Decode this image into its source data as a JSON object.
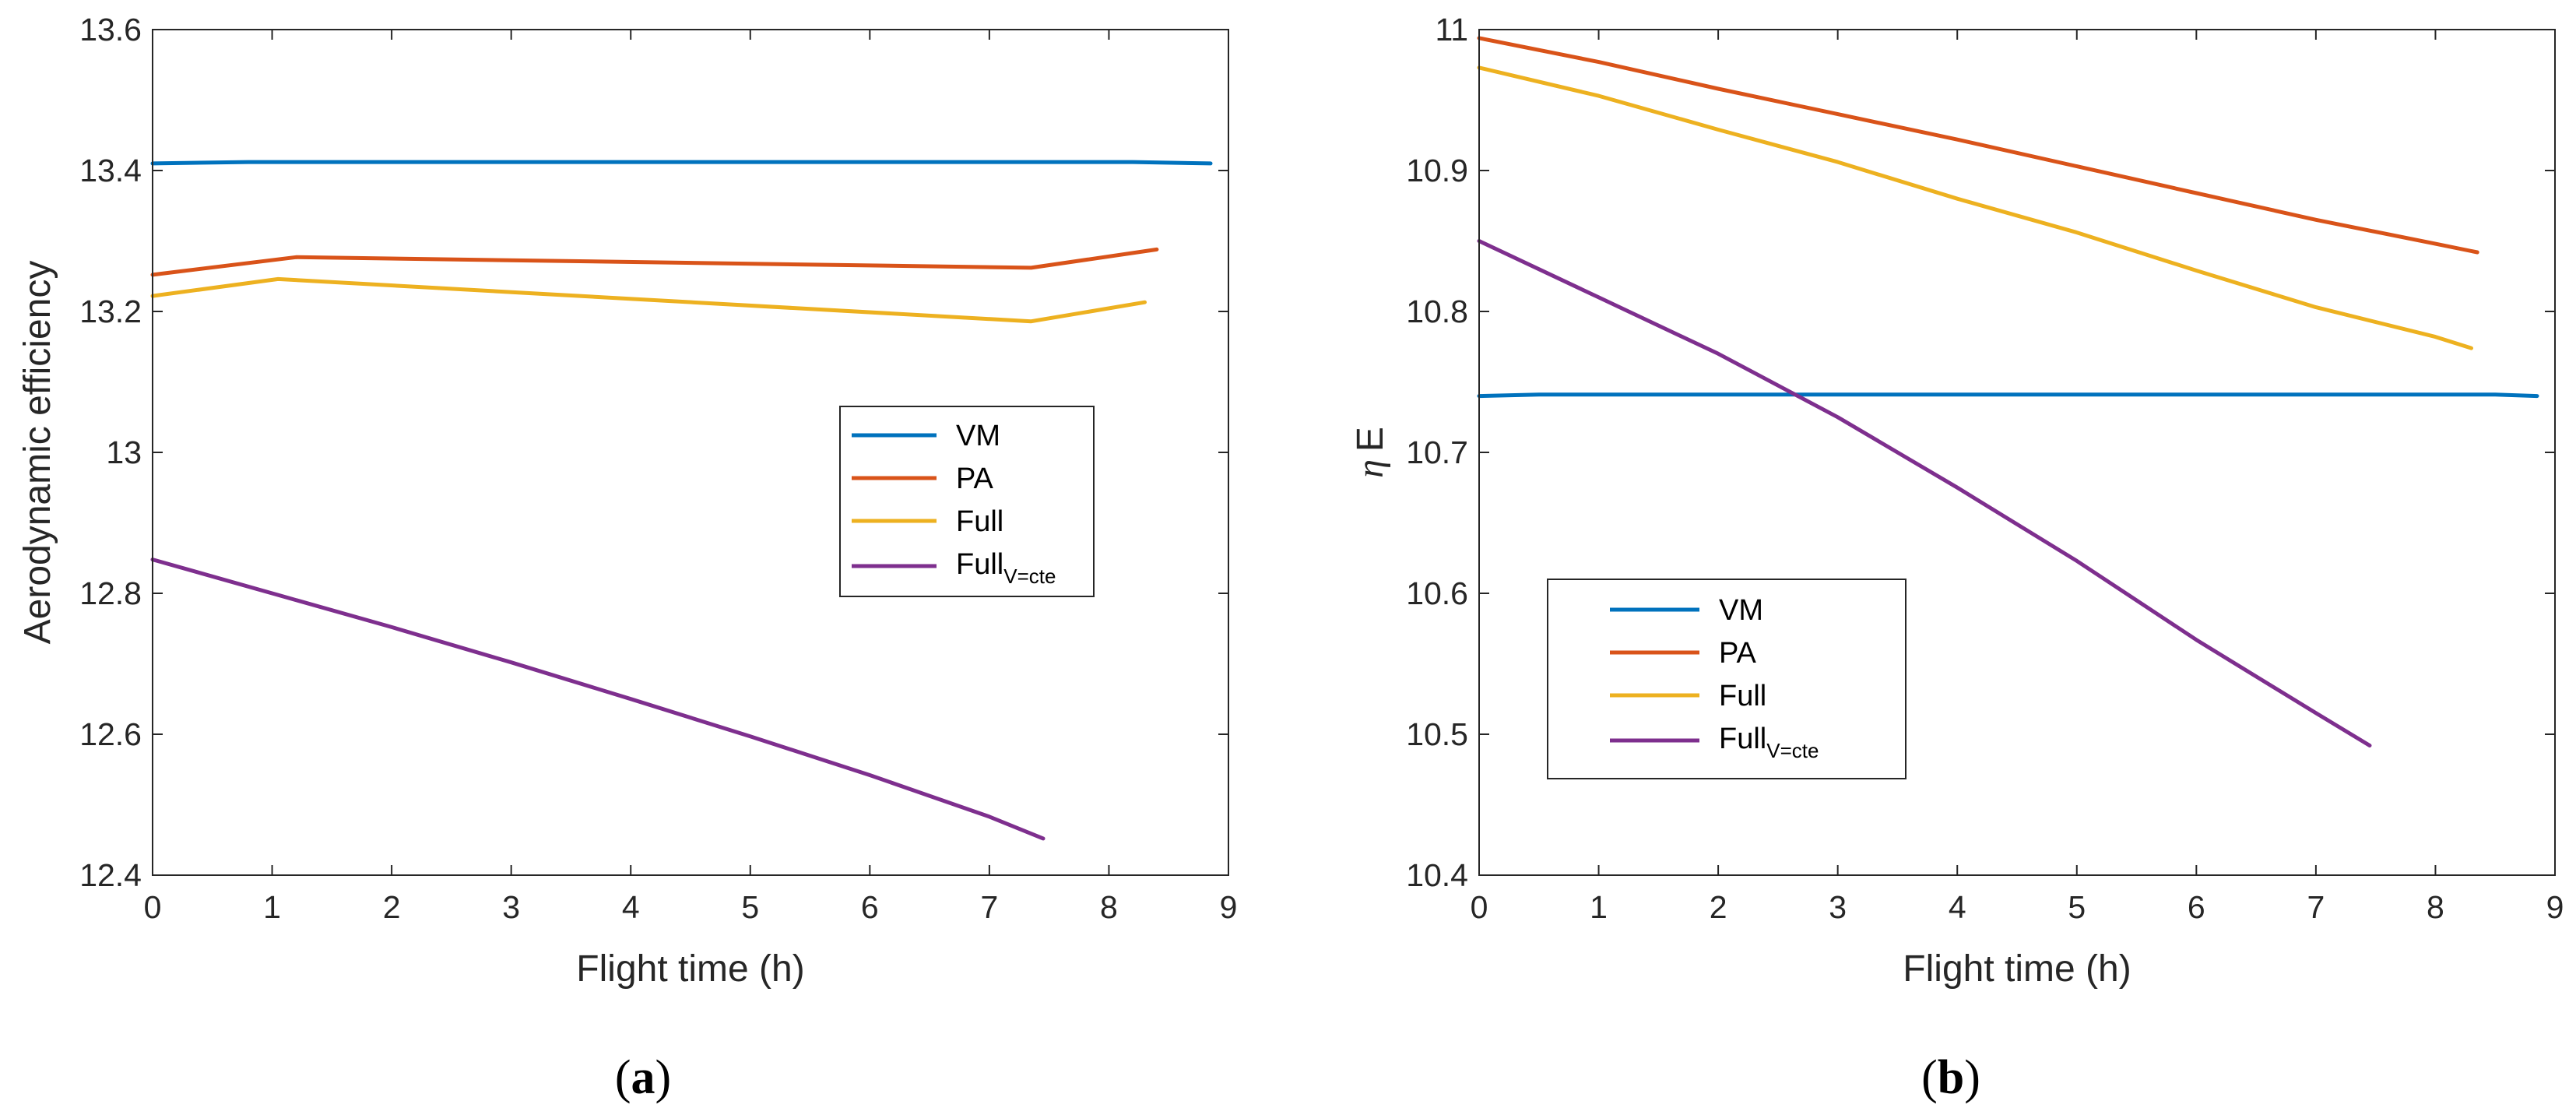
{
  "chart_data": [
    {
      "type": "line",
      "panel": "a",
      "title": "",
      "xlabel": "Flight time (h)",
      "ylabel": "Aerodynamic efficiency",
      "xlim": [
        0,
        9
      ],
      "ylim": [
        12.4,
        13.6
      ],
      "xticks": [
        0,
        1,
        2,
        3,
        4,
        5,
        6,
        7,
        8,
        9
      ],
      "yticks": [
        12.4,
        12.6,
        12.8,
        13,
        13.2,
        13.4,
        13.6
      ],
      "ytick_labels": [
        "12.4",
        "12.6",
        "12.8",
        "13",
        "13.2",
        "13.4",
        "13.6"
      ],
      "legend_position": "center-right",
      "series": [
        {
          "name": "VM",
          "subscript": "",
          "color": "#0072BD",
          "x": [
            0,
            0.8,
            4.5,
            8.2,
            8.85
          ],
          "y": [
            13.41,
            13.412,
            13.412,
            13.412,
            13.41
          ]
        },
        {
          "name": "PA",
          "subscript": "",
          "color": "#D95319",
          "x": [
            0,
            1.2,
            7.35,
            8.4
          ],
          "y": [
            13.252,
            13.277,
            13.262,
            13.288
          ]
        },
        {
          "name": "Full",
          "subscript": "",
          "color": "#EDB120",
          "x": [
            0,
            1.05,
            7.35,
            8.3
          ],
          "y": [
            13.222,
            13.246,
            13.186,
            13.213
          ]
        },
        {
          "name": "Full",
          "subscript": "V=cte",
          "color": "#7E2F8E",
          "x": [
            0,
            1,
            2,
            3,
            4,
            5,
            6,
            7,
            7.45
          ],
          "y": [
            12.848,
            12.8,
            12.752,
            12.702,
            12.65,
            12.597,
            12.542,
            12.483,
            12.452
          ]
        }
      ]
    },
    {
      "type": "line",
      "panel": "b",
      "title": "",
      "xlabel": "Flight time (h)",
      "ylabel_symbol": "η",
      "ylabel": "E",
      "xlim": [
        0,
        9
      ],
      "ylim": [
        10.4,
        11
      ],
      "xticks": [
        0,
        1,
        2,
        3,
        4,
        5,
        6,
        7,
        8,
        9
      ],
      "yticks": [
        10.4,
        10.5,
        10.6,
        10.7,
        10.8,
        10.9,
        11
      ],
      "ytick_labels": [
        "10.4",
        "10.5",
        "10.6",
        "10.7",
        "10.8",
        "10.9",
        "11"
      ],
      "legend_position": "lower-left",
      "series": [
        {
          "name": "VM",
          "subscript": "",
          "color": "#0072BD",
          "x": [
            0,
            0.5,
            4.5,
            8.5,
            8.85
          ],
          "y": [
            10.74,
            10.741,
            10.741,
            10.741,
            10.74
          ]
        },
        {
          "name": "PA",
          "subscript": "",
          "color": "#D95319",
          "x": [
            0,
            1,
            2,
            3,
            4,
            5,
            6,
            7,
            8,
            8.35
          ],
          "y": [
            10.994,
            10.977,
            10.958,
            10.94,
            10.922,
            10.903,
            10.884,
            10.865,
            10.848,
            10.842
          ]
        },
        {
          "name": "Full",
          "subscript": "",
          "color": "#EDB120",
          "x": [
            0,
            1,
            2,
            3,
            4,
            5,
            6,
            7,
            8,
            8.3
          ],
          "y": [
            10.973,
            10.953,
            10.929,
            10.906,
            10.88,
            10.856,
            10.829,
            10.803,
            10.782,
            10.774
          ]
        },
        {
          "name": "Full",
          "subscript": "V=cte",
          "color": "#7E2F8E",
          "x": [
            0,
            1,
            2,
            3,
            4,
            5,
            6,
            7,
            7.45
          ],
          "y": [
            10.85,
            10.81,
            10.77,
            10.725,
            10.675,
            10.623,
            10.567,
            10.515,
            10.492
          ]
        }
      ]
    }
  ],
  "captions": {
    "a": {
      "open": "(",
      "letter": "a",
      "close": ")"
    },
    "b": {
      "open": "(",
      "letter": "b",
      "close": ")"
    }
  }
}
